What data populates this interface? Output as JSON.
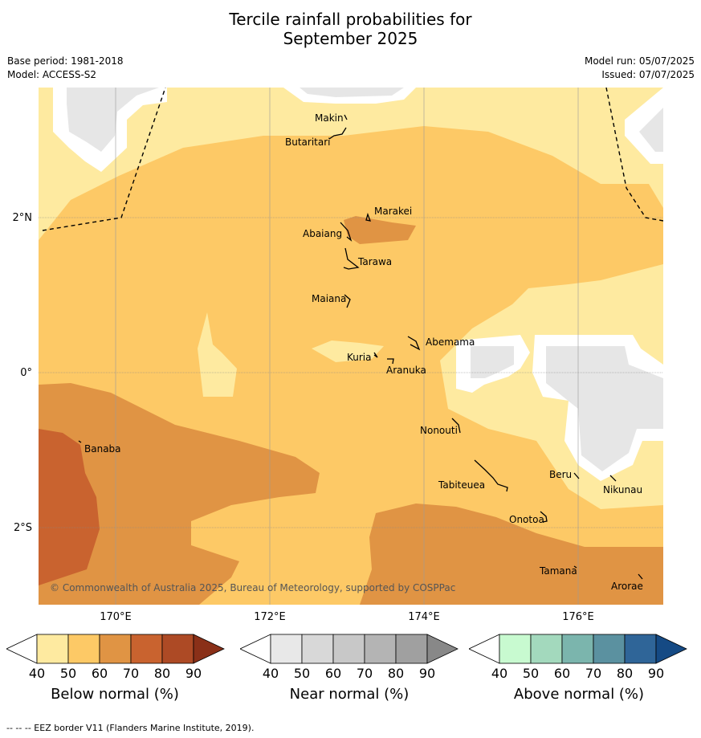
{
  "title_line1": "Tercile rainfall probabilities for",
  "title_line2": "September 2025",
  "base_period": "Base period: 1981-2018",
  "model": "Model: ACCESS-S2",
  "model_run": "Model run: 05/07/2025",
  "issued": "Issued: 07/07/2025",
  "lat_labels": [
    "2°N",
    "0°",
    "2°S"
  ],
  "lon_labels": [
    "170°E",
    "172°E",
    "174°E",
    "176°E"
  ],
  "copyright": "© Commonwealth of Australia 2025, Bureau of Meteorology, supported by COSPPac",
  "places": [
    "Makin",
    "Butaritari",
    "Marakei",
    "Abaiang",
    "Tarawa",
    "Maiana",
    "Abemama",
    "Kuria",
    "Aranuka",
    "Banaba",
    "Nonouti",
    "Beru",
    "Nikunau",
    "Tabiteuea",
    "Onotoa",
    "Tamana",
    "Arorae"
  ],
  "colorbars": [
    {
      "title": "Below normal (%)",
      "ticks": [
        "40",
        "50",
        "60",
        "70",
        "80",
        "90"
      ],
      "colors": [
        "#ffffff",
        "#feeaa0",
        "#fdc966",
        "#e09444",
        "#c9632f",
        "#ad4a25",
        "#8a3018"
      ]
    },
    {
      "title": "Near normal (%)",
      "ticks": [
        "40",
        "50",
        "60",
        "70",
        "80",
        "90"
      ],
      "colors": [
        "#ffffff",
        "#e8e8e8",
        "#d8d8d8",
        "#c8c8c8",
        "#b4b4b4",
        "#a0a0a0",
        "#888888"
      ]
    },
    {
      "title": "Above normal (%)",
      "ticks": [
        "40",
        "50",
        "60",
        "70",
        "80",
        "90"
      ],
      "colors": [
        "#ffffff",
        "#c8fad0",
        "#a3d9bd",
        "#7bb5ad",
        "#5b91a0",
        "#2f6598",
        "#154a84"
      ]
    }
  ],
  "footnote": "--  --  -- EEZ border V11 (Flanders Marine Institute, 2019)."
}
